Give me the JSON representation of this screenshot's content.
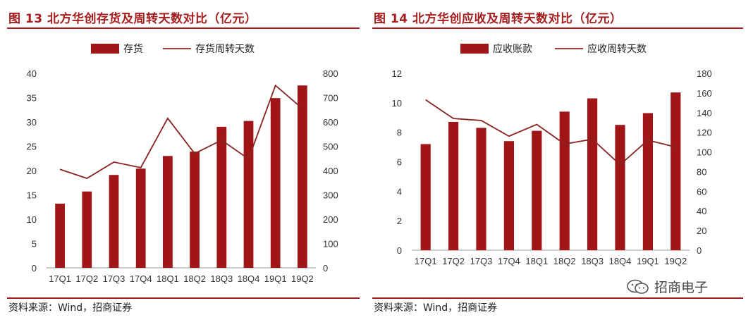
{
  "figures": [
    {
      "title": "图 13  北方华创存货及周转天数对比（亿元）",
      "source": "资料来源：Wind，招商证券"
    },
    {
      "title": "图 14  北方华创应收及周转天数对比（亿元）",
      "source": "资料来源：Wind，招商证券"
    }
  ],
  "watermark": "招商电子",
  "chart_data": [
    {
      "type": "bar",
      "categories": [
        "17Q1",
        "17Q2",
        "17Q3",
        "17Q4",
        "18Q1",
        "18Q2",
        "18Q3",
        "18Q4",
        "19Q1",
        "19Q2"
      ],
      "series": [
        {
          "name": "存货",
          "type": "bar",
          "axis": "left",
          "color": "#a01515",
          "values": [
            13.2,
            15.7,
            19.1,
            20.4,
            23.0,
            23.9,
            29.0,
            30.2,
            34.9,
            37.5
          ]
        },
        {
          "name": "存货周转天数",
          "type": "line",
          "axis": "right",
          "color": "#8a2424",
          "values": [
            405,
            368,
            435,
            412,
            615,
            470,
            525,
            448,
            750,
            655
          ]
        }
      ],
      "left_axis": {
        "min": 0,
        "max": 40,
        "ticks": [
          0,
          5,
          10,
          15,
          20,
          25,
          30,
          35,
          40
        ]
      },
      "right_axis": {
        "min": 0,
        "max": 800,
        "ticks": [
          0,
          100,
          200,
          300,
          400,
          500,
          600,
          700,
          800
        ]
      },
      "legend_position": "top-center",
      "grid": false
    },
    {
      "type": "bar",
      "categories": [
        "17Q1",
        "17Q2",
        "17Q3",
        "17Q4",
        "18Q1",
        "18Q2",
        "18Q3",
        "18Q4",
        "19Q1",
        "19Q2"
      ],
      "series": [
        {
          "name": "应收账款",
          "type": "bar",
          "axis": "left",
          "color": "#a01515",
          "values": [
            7.2,
            8.7,
            8.3,
            7.4,
            8.1,
            9.4,
            10.3,
            8.5,
            9.3,
            10.7
          ]
        },
        {
          "name": "应收周转天数",
          "type": "line",
          "axis": "right",
          "color": "#8a2424",
          "values": [
            153,
            134,
            132,
            116,
            128,
            108,
            113,
            87,
            112,
            105
          ]
        }
      ],
      "left_axis": {
        "min": 0,
        "max": 12,
        "ticks": [
          0,
          2,
          4,
          6,
          8,
          10,
          12
        ]
      },
      "right_axis": {
        "min": 0,
        "max": 180,
        "ticks": [
          0,
          20,
          40,
          60,
          80,
          100,
          120,
          140,
          160,
          180
        ]
      },
      "legend_position": "top-center",
      "grid": false
    }
  ]
}
